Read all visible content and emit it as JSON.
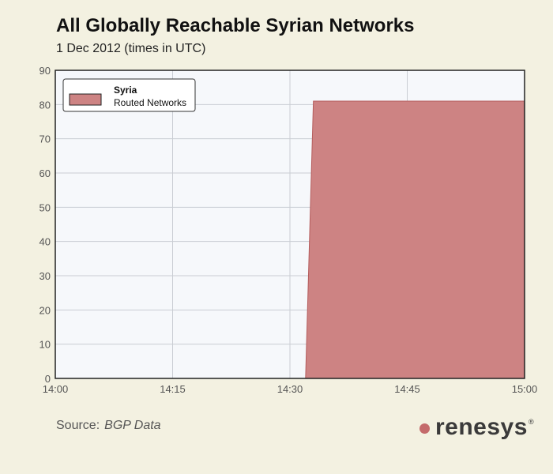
{
  "header": {
    "title": "All Globally Reachable Syrian Networks",
    "subtitle": "1 Dec 2012 (times in UTC)"
  },
  "footer": {
    "source_label": "Source:",
    "source_value": "BGP Data",
    "brand": "renesys",
    "brand_mark": "®"
  },
  "colors": {
    "background": "#f3f1e1",
    "plot_background": "#f6f8fb",
    "area_fill": "#cd8383",
    "area_stroke": "#b55d5d",
    "grid": "#c9cdd3"
  },
  "chart_data": {
    "type": "area",
    "title": "All Globally Reachable Syrian Networks",
    "subtitle": "1 Dec 2012 (times in UTC)",
    "xlabel": "",
    "ylabel": "",
    "x_ticks": [
      "14:00",
      "14:15",
      "14:30",
      "14:45",
      "15:00"
    ],
    "y_ticks": [
      0,
      10,
      20,
      30,
      40,
      50,
      60,
      70,
      80,
      90
    ],
    "xlim": [
      "14:00",
      "15:00"
    ],
    "ylim": [
      0,
      90
    ],
    "grid": true,
    "legend": {
      "position": "top-left",
      "title": "Syria",
      "entries": [
        "Routed Networks"
      ]
    },
    "series": [
      {
        "name": "Routed Networks",
        "x": [
          "14:00",
          "14:32",
          "14:33",
          "15:00"
        ],
        "values": [
          0,
          0,
          81,
          81
        ]
      }
    ]
  }
}
